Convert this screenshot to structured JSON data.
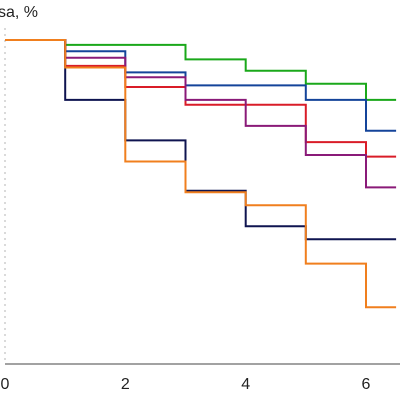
{
  "chart_data": {
    "type": "line",
    "step": true,
    "ylabel": "sa, %",
    "xlim": [
      0,
      6.5
    ],
    "ylim": [
      0,
      100
    ],
    "x_ticks": [
      "0",
      "2",
      "4",
      "6"
    ],
    "x_tick_values": [
      0,
      2,
      4,
      6
    ],
    "grid": false,
    "series": [
      {
        "color": "#1aa81a",
        "x": [
          0,
          1,
          3,
          4,
          5,
          6,
          6.5
        ],
        "values": [
          100,
          98.5,
          94,
          90.5,
          86.5,
          81.5,
          81.5
        ]
      },
      {
        "color": "#14449a",
        "x": [
          0,
          1,
          2,
          3,
          5,
          6,
          6.5
        ],
        "values": [
          100,
          96.5,
          90,
          86,
          81.5,
          72,
          72
        ]
      },
      {
        "color": "#d91c28",
        "x": [
          0,
          1,
          2,
          3,
          5,
          6,
          6.5
        ],
        "values": [
          100,
          92,
          85.5,
          80,
          68.5,
          64,
          64
        ]
      },
      {
        "color": "#8a1a78",
        "x": [
          0,
          1,
          2,
          3,
          4,
          5,
          6,
          6.5
        ],
        "values": [
          100,
          94.5,
          88.5,
          81.5,
          73.5,
          64.5,
          54.5,
          54.5
        ]
      },
      {
        "color": "#0f1450",
        "x": [
          0,
          1,
          2,
          3,
          4,
          5,
          6.5
        ],
        "values": [
          100,
          81.5,
          69,
          53.5,
          42.5,
          38.5,
          38.5
        ]
      },
      {
        "color": "#f07f1e",
        "x": [
          0,
          1,
          2,
          3,
          4,
          5,
          6,
          6.5
        ],
        "values": [
          100,
          91.5,
          62.5,
          53,
          49,
          31,
          17.5,
          17.5
        ]
      }
    ]
  }
}
